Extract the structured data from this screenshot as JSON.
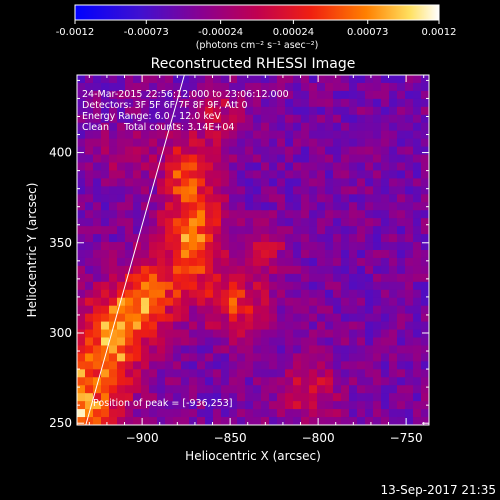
{
  "chart_data": {
    "type": "heatmap",
    "title": "Reconstructed RHESSI Image",
    "xlabel": "Heliocentric X (arcsec)",
    "ylabel": "Heliocentric Y (arcsec)",
    "xlim": [
      -937,
      -737
    ],
    "ylim": [
      249,
      443
    ],
    "xticks": [
      -900,
      -850,
      -800,
      -750
    ],
    "yticks": [
      250,
      300,
      350,
      400
    ],
    "colorbar": {
      "min": -0.0012,
      "max": 0.0012,
      "ticks": [
        "-0.0012",
        "-0.00073",
        "-0.00024",
        "0.00024",
        "0.00073",
        "0.0012"
      ],
      "unit_label": "(photons cm⁻² s⁻¹ asec⁻²)",
      "colormap": [
        "#0000ff",
        "#5010c0",
        "#900080",
        "#d00040",
        "#ff6000",
        "#ffd040",
        "#ffffff"
      ]
    },
    "annotations": {
      "time": "24-Mar-2015 22:56:12.000 to 23:06:12.000",
      "detectors": "Detectors: 3F 5F 6F 7F 8F 9F, Att 0",
      "energy": "Energy Range: 6.0 - 12.0 keV",
      "method": "Clean     Total counts: 3.14E+04",
      "peak": "Position of peak = [-936,253]"
    },
    "peak_position": [
      -936,
      253
    ],
    "limb_line": [
      [
        -932,
        249
      ],
      [
        -876,
        443
      ]
    ],
    "emission_blobs": [
      {
        "x": -935,
        "y": 262,
        "sx": 16,
        "sy": 22,
        "amp": 0.00115
      },
      {
        "x": -915,
        "y": 300,
        "sx": 14,
        "sy": 18,
        "amp": 0.001
      },
      {
        "x": -895,
        "y": 322,
        "sx": 12,
        "sy": 14,
        "amp": 0.00085
      },
      {
        "x": -870,
        "y": 352,
        "sx": 12,
        "sy": 20,
        "amp": 0.00105
      },
      {
        "x": -875,
        "y": 390,
        "sx": 10,
        "sy": 14,
        "amp": 0.00075
      },
      {
        "x": -845,
        "y": 315,
        "sx": 12,
        "sy": 12,
        "amp": 0.0008
      },
      {
        "x": -830,
        "y": 345,
        "sx": 9,
        "sy": 9,
        "amp": 0.0005
      },
      {
        "x": -805,
        "y": 268,
        "sx": 12,
        "sy": 12,
        "amp": 0.00055
      },
      {
        "x": -855,
        "y": 420,
        "sx": 10,
        "sy": 12,
        "amp": 0.00045
      },
      {
        "x": -910,
        "y": 400,
        "sx": 10,
        "sy": 10,
        "amp": 0.0003
      }
    ],
    "background_level": -0.00045
  },
  "footer": {
    "date": "13-Sep-2017 21:35"
  }
}
